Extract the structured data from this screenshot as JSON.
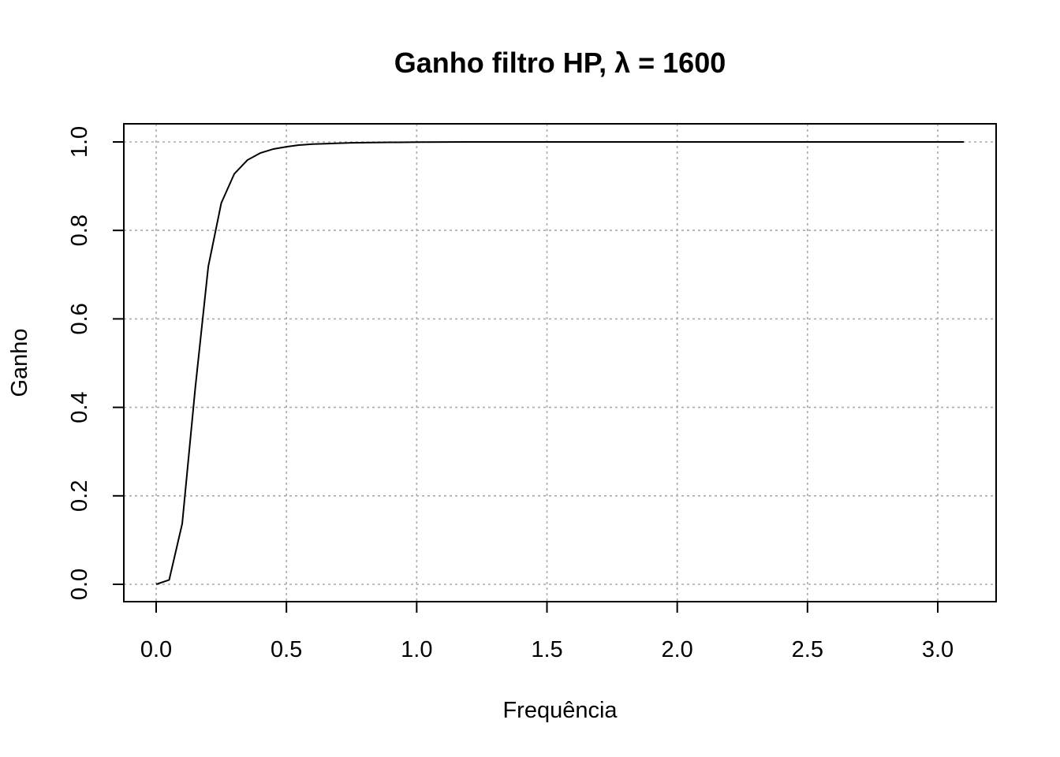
{
  "chart_data": {
    "type": "line",
    "title": "Ganho filtro HP, λ = 1600",
    "xlabel": "Frequência",
    "ylabel": "Ganho",
    "xlim": [
      0,
      3.1
    ],
    "ylim": [
      0,
      1
    ],
    "grid": true,
    "x_ticks": [
      0.0,
      0.5,
      1.0,
      1.5,
      2.0,
      2.5,
      3.0
    ],
    "x_tick_labels": [
      "0.0",
      "0.5",
      "1.0",
      "1.5",
      "2.0",
      "2.5",
      "3.0"
    ],
    "y_ticks": [
      0.0,
      0.2,
      0.4,
      0.6,
      0.8,
      1.0
    ],
    "y_tick_labels": [
      "0.0",
      "0.2",
      "0.4",
      "0.6",
      "0.8",
      "1.0"
    ],
    "series": [
      {
        "name": "Ganho",
        "color": "#000000",
        "x": [
          0.0,
          0.05,
          0.1,
          0.15,
          0.2,
          0.25,
          0.3,
          0.35,
          0.4,
          0.45,
          0.5,
          0.55,
          0.6,
          0.65,
          0.7,
          0.75,
          0.8,
          0.9,
          1.0,
          1.2,
          1.5,
          2.0,
          2.5,
          3.0,
          3.1
        ],
        "y": [
          0.0,
          0.01,
          0.137,
          0.443,
          0.718,
          0.862,
          0.928,
          0.959,
          0.975,
          0.984,
          0.989,
          0.993,
          0.995,
          0.996,
          0.997,
          0.998,
          0.9985,
          0.999,
          0.9995,
          1.0,
          1.0,
          1.0,
          1.0,
          1.0,
          1.0
        ]
      }
    ]
  }
}
